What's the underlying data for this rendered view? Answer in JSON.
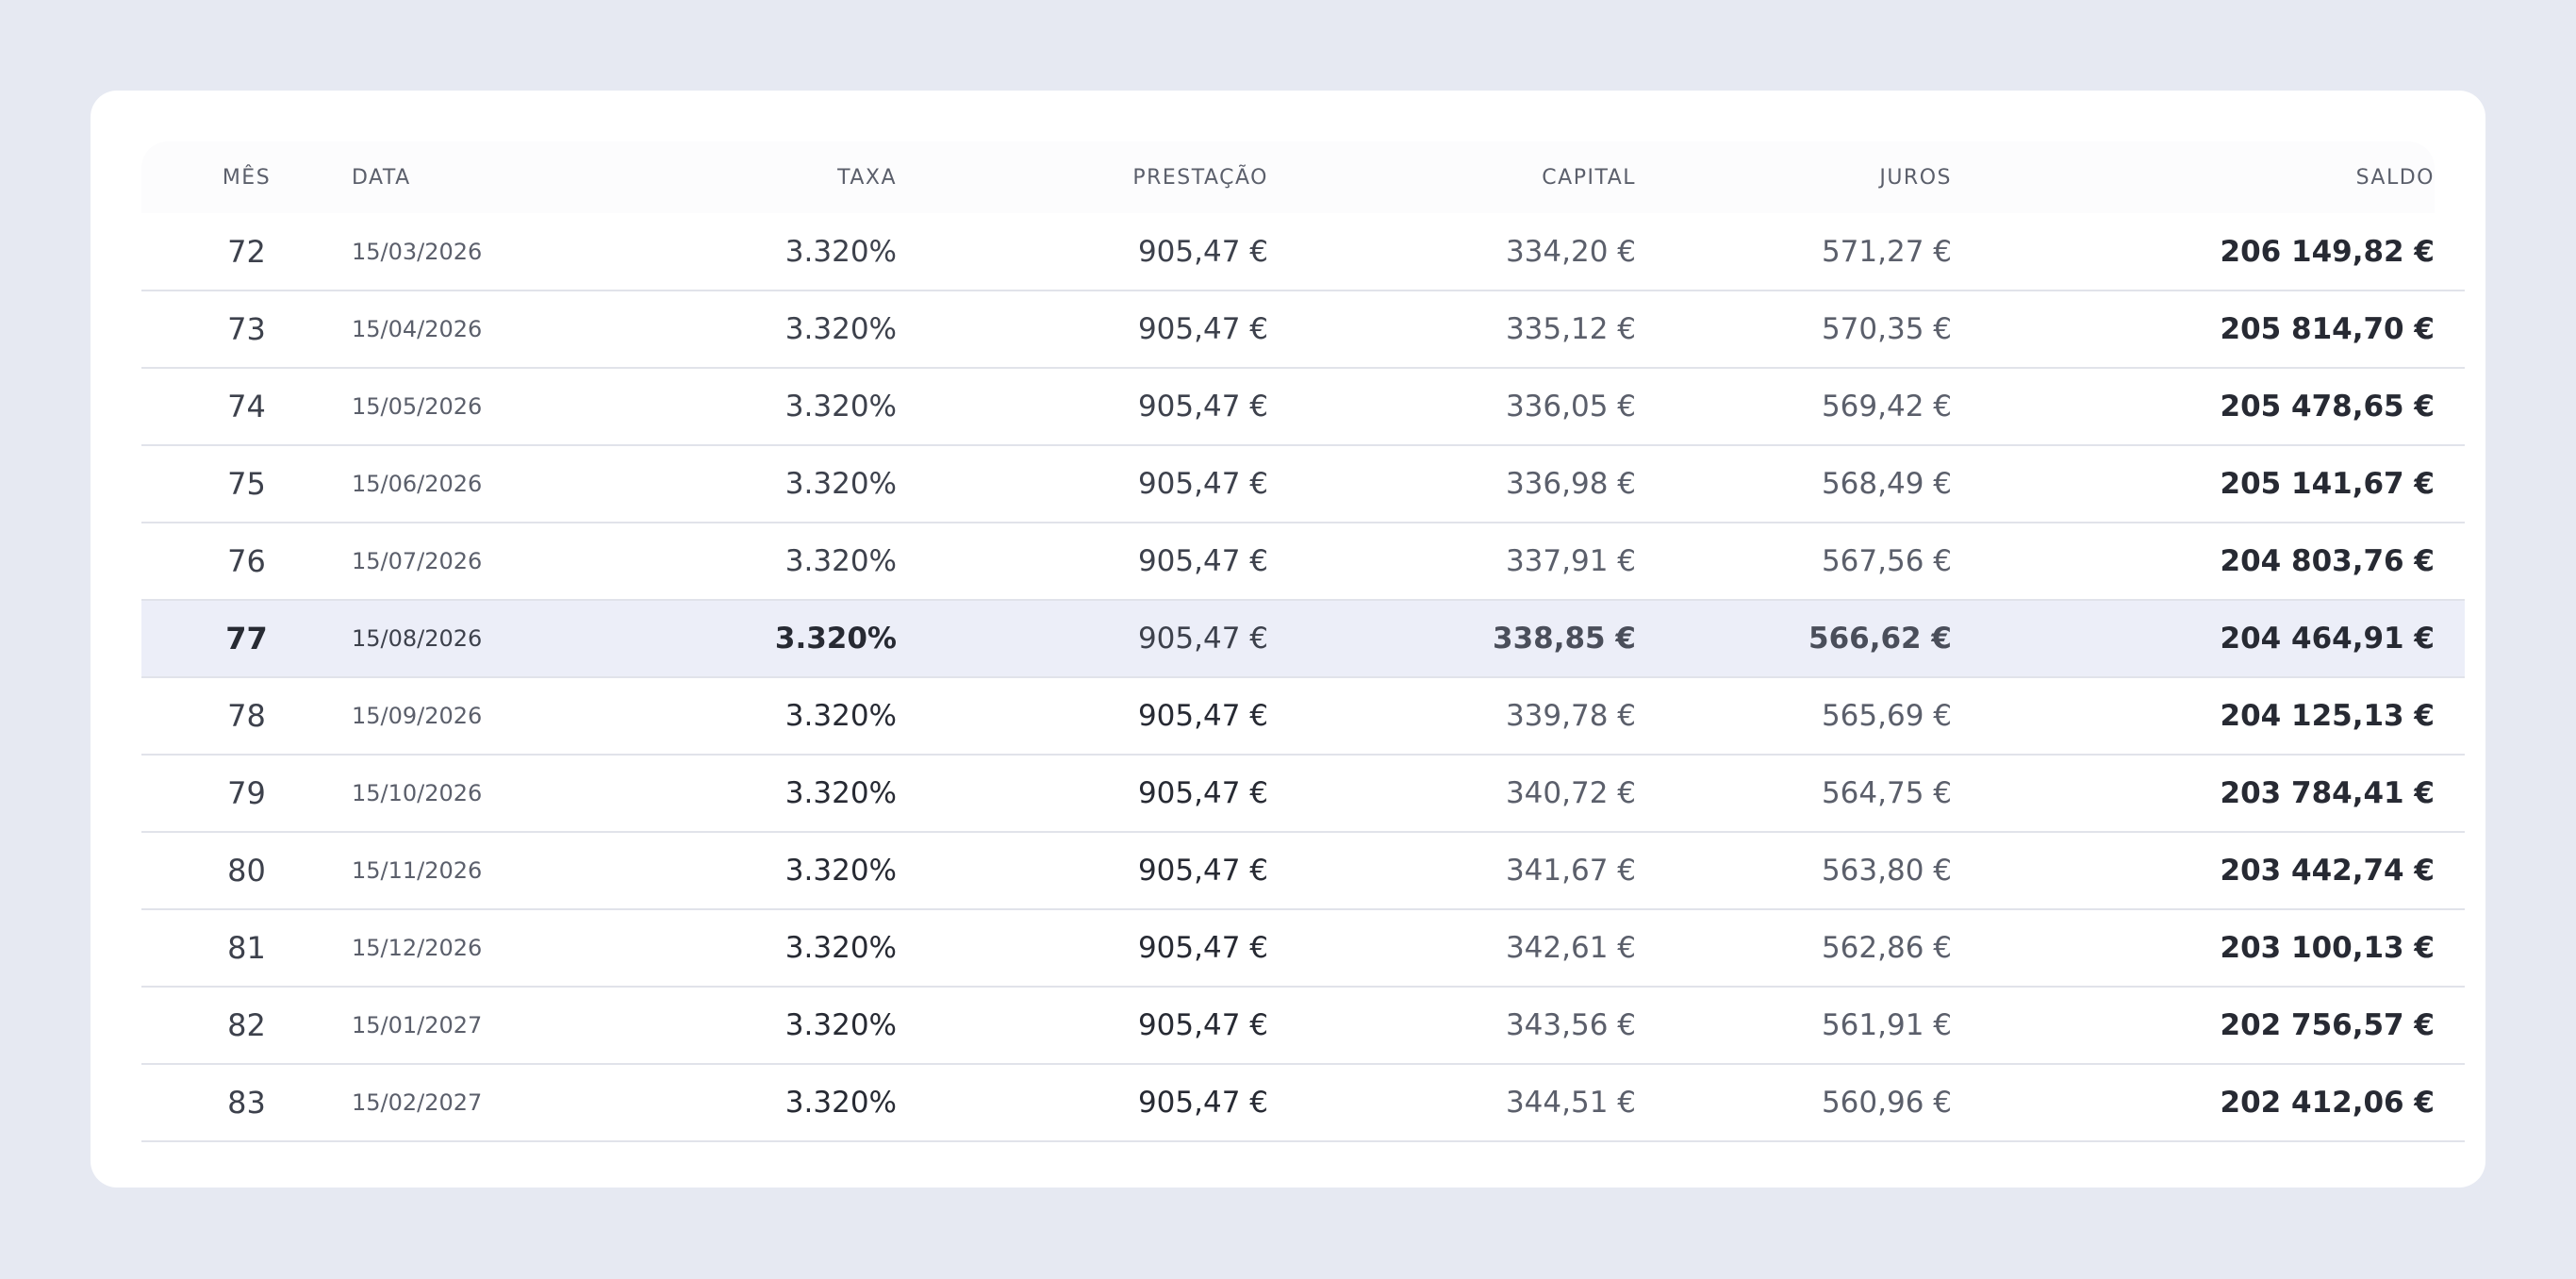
{
  "table": {
    "headers": {
      "mes": "MÊS",
      "data": "DATA",
      "taxa": "TAXA",
      "prestacao": "PRESTAÇÃO",
      "capital": "CAPITAL",
      "juros": "JUROS",
      "saldo": "SALDO"
    },
    "highlighted_row": "77",
    "rows": [
      {
        "mes": "72",
        "data": "15/03/2026",
        "taxa": "3.320%",
        "prestacao": "905,47 €",
        "capital": "334,20 €",
        "juros": "571,27 €",
        "saldo": "206 149,82 €"
      },
      {
        "mes": "73",
        "data": "15/04/2026",
        "taxa": "3.320%",
        "prestacao": "905,47 €",
        "capital": "335,12 €",
        "juros": "570,35 €",
        "saldo": "205 814,70 €"
      },
      {
        "mes": "74",
        "data": "15/05/2026",
        "taxa": "3.320%",
        "prestacao": "905,47 €",
        "capital": "336,05 €",
        "juros": "569,42 €",
        "saldo": "205 478,65 €"
      },
      {
        "mes": "75",
        "data": "15/06/2026",
        "taxa": "3.320%",
        "prestacao": "905,47 €",
        "capital": "336,98 €",
        "juros": "568,49 €",
        "saldo": "205 141,67 €"
      },
      {
        "mes": "76",
        "data": "15/07/2026",
        "taxa": "3.320%",
        "prestacao": "905,47 €",
        "capital": "337,91 €",
        "juros": "567,56 €",
        "saldo": "204 803,76 €"
      },
      {
        "mes": "77",
        "data": "15/08/2026",
        "taxa": "3.320%",
        "prestacao": "905,47 €",
        "capital": "338,85 €",
        "juros": "566,62 €",
        "saldo": "204 464,91 €"
      },
      {
        "mes": "78",
        "data": "15/09/2026",
        "taxa": "3.320%",
        "prestacao": "905,47 €",
        "capital": "339,78 €",
        "juros": "565,69 €",
        "saldo": "204 125,13 €"
      },
      {
        "mes": "79",
        "data": "15/10/2026",
        "taxa": "3.320%",
        "prestacao": "905,47 €",
        "capital": "340,72 €",
        "juros": "564,75 €",
        "saldo": "203 784,41 €"
      },
      {
        "mes": "80",
        "data": "15/11/2026",
        "taxa": "3.320%",
        "prestacao": "905,47 €",
        "capital": "341,67 €",
        "juros": "563,80 €",
        "saldo": "203 442,74 €"
      },
      {
        "mes": "81",
        "data": "15/12/2026",
        "taxa": "3.320%",
        "prestacao": "905,47 €",
        "capital": "342,61 €",
        "juros": "562,86 €",
        "saldo": "203 100,13 €"
      },
      {
        "mes": "82",
        "data": "15/01/2027",
        "taxa": "3.320%",
        "prestacao": "905,47 €",
        "capital": "343,56 €",
        "juros": "561,91 €",
        "saldo": "202 756,57 €"
      },
      {
        "mes": "83",
        "data": "15/02/2027",
        "taxa": "3.320%",
        "prestacao": "905,47 €",
        "capital": "344,51 €",
        "juros": "560,96 €",
        "saldo": "202 412,06 €"
      }
    ]
  },
  "colors": {
    "page_background": "#e6e9f2",
    "card_background": "#ffffff",
    "highlight_row": "#eceef8",
    "row_divider": "#e1e3ea",
    "text_strong": "#272a33",
    "text_muted": "#5b5f6b"
  }
}
